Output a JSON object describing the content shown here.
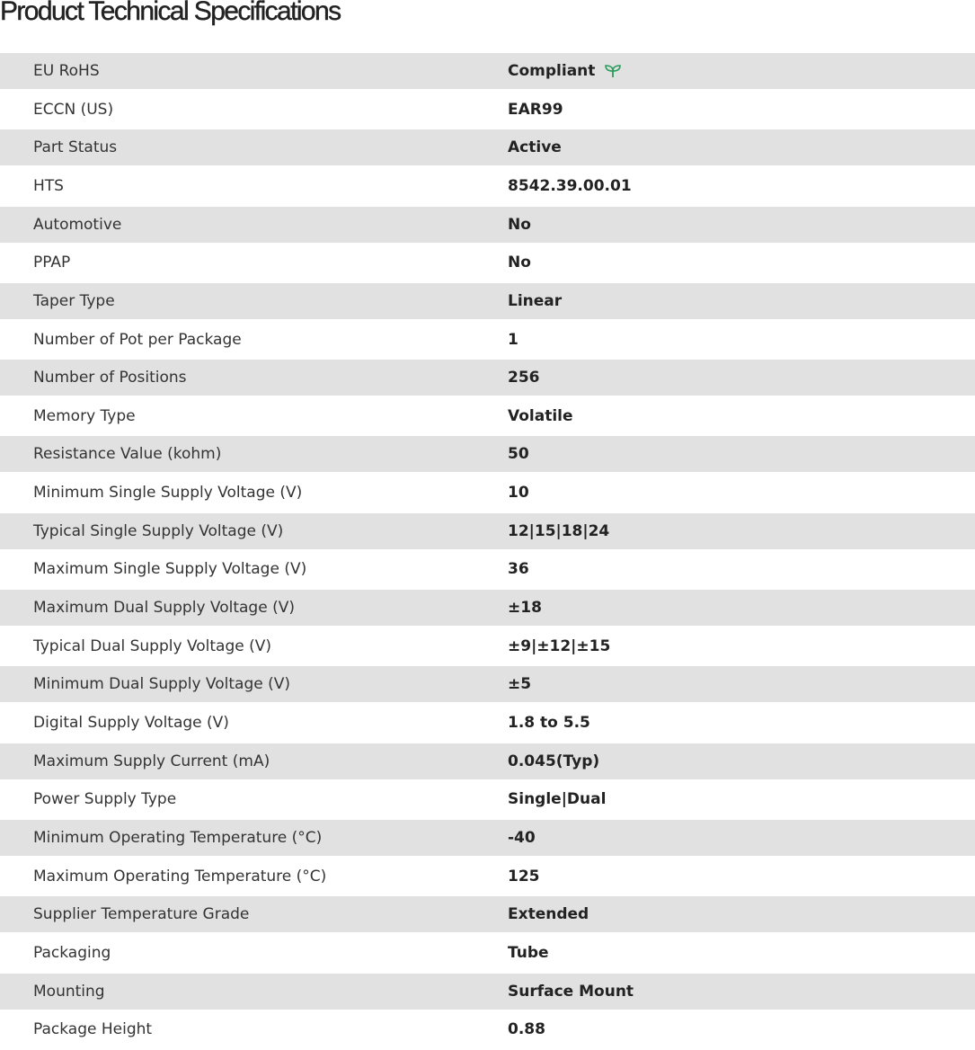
{
  "title": "Product Technical Specifications",
  "accent_color": "#2a9d5c",
  "rows": [
    {
      "label": "EU RoHS",
      "value": "Compliant",
      "icon": "leaf-icon"
    },
    {
      "label": "ECCN (US)",
      "value": "EAR99"
    },
    {
      "label": "Part Status",
      "value": "Active"
    },
    {
      "label": "HTS",
      "value": "8542.39.00.01"
    },
    {
      "label": "Automotive",
      "value": "No"
    },
    {
      "label": "PPAP",
      "value": "No"
    },
    {
      "label": "Taper Type",
      "value": "Linear"
    },
    {
      "label": "Number of Pot per Package",
      "value": "1"
    },
    {
      "label": "Number of Positions",
      "value": "256"
    },
    {
      "label": "Memory Type",
      "value": "Volatile"
    },
    {
      "label": "Resistance Value (kohm)",
      "value": "50"
    },
    {
      "label": "Minimum Single Supply Voltage (V)",
      "value": "10"
    },
    {
      "label": "Typical Single Supply Voltage (V)",
      "value": "12|15|18|24"
    },
    {
      "label": "Maximum Single Supply Voltage (V)",
      "value": "36"
    },
    {
      "label": "Maximum Dual Supply Voltage (V)",
      "value": "±18"
    },
    {
      "label": "Typical Dual Supply Voltage (V)",
      "value": "±9|±12|±15"
    },
    {
      "label": "Minimum Dual Supply Voltage (V)",
      "value": "±5"
    },
    {
      "label": "Digital Supply Voltage (V)",
      "value": "1.8 to 5.5"
    },
    {
      "label": "Maximum Supply Current (mA)",
      "value": "0.045(Typ)"
    },
    {
      "label": "Power Supply Type",
      "value": "Single|Dual"
    },
    {
      "label": "Minimum Operating Temperature (°C)",
      "value": "-40"
    },
    {
      "label": "Maximum Operating Temperature (°C)",
      "value": "125"
    },
    {
      "label": "Supplier Temperature Grade",
      "value": "Extended"
    },
    {
      "label": "Packaging",
      "value": "Tube"
    },
    {
      "label": "Mounting",
      "value": "Surface Mount"
    },
    {
      "label": "Package Height",
      "value": "0.88"
    }
  ]
}
